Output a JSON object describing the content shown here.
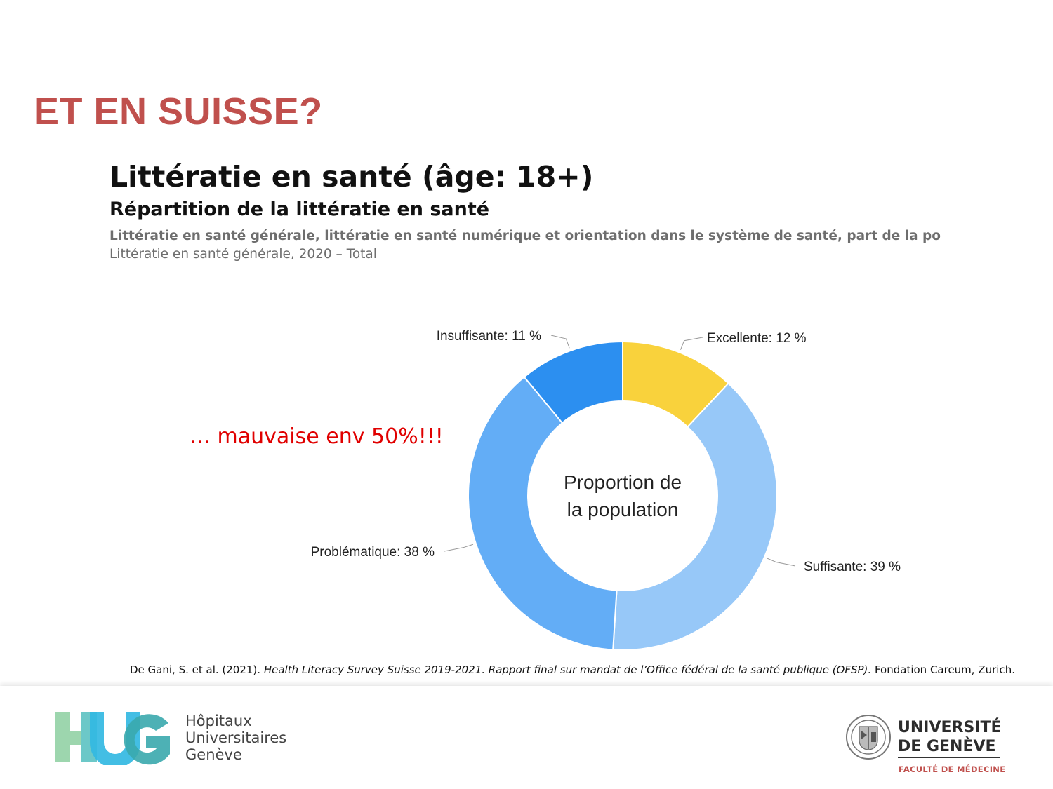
{
  "slide": {
    "title": "ET EN SUISSE?",
    "annotation": "… mauvaise env 50%!!!"
  },
  "panel": {
    "title": "Littératie en santé (âge: 18+)",
    "subtitle": "Répartition de la littératie en santé",
    "description": "Littératie en santé générale, littératie en santé numérique et orientation dans le système de santé, part de la population e",
    "filter": "Littératie en santé générale, 2020 – Total"
  },
  "chart_data": {
    "type": "pie",
    "center_label": [
      "Proportion de",
      "la population"
    ],
    "slices": [
      {
        "name": "Excellente",
        "value": 12,
        "label": "Excellente: 12 %",
        "color": "#f9d23c"
      },
      {
        "name": "Suffisante",
        "value": 39,
        "label": "Suffisante: 39 %",
        "color": "#97c8f8"
      },
      {
        "name": "Problématique",
        "value": 38,
        "label": "Problématique: 38 %",
        "color": "#63adf6"
      },
      {
        "name": "Insuffisante",
        "value": 11,
        "label": "Insuffisante: 11 %",
        "color": "#2c8ff0"
      }
    ]
  },
  "citation": {
    "authors": "De Gani, S. et al. (2021). ",
    "title": "Health Literacy Survey Suisse 2019-2021. Rapport final sur mandat de l’Office fédéral de la santé publique (OFSP).",
    "publisher": " Fondation Careum, Zurich."
  },
  "footer": {
    "hug_lines": [
      "Hôpitaux",
      "Universitaires",
      "Genève"
    ],
    "unige_lines": [
      "UNIVERSITÉ",
      "DE GENÈVE"
    ],
    "unige_faculty": "FACULTÉ DE MÉDECINE",
    "colors": {
      "hug_green": "#8fd0a4",
      "hug_blue": "#2fb8e0",
      "hug_teal": "#3aaab0",
      "unige_red": "#c0504d"
    }
  }
}
